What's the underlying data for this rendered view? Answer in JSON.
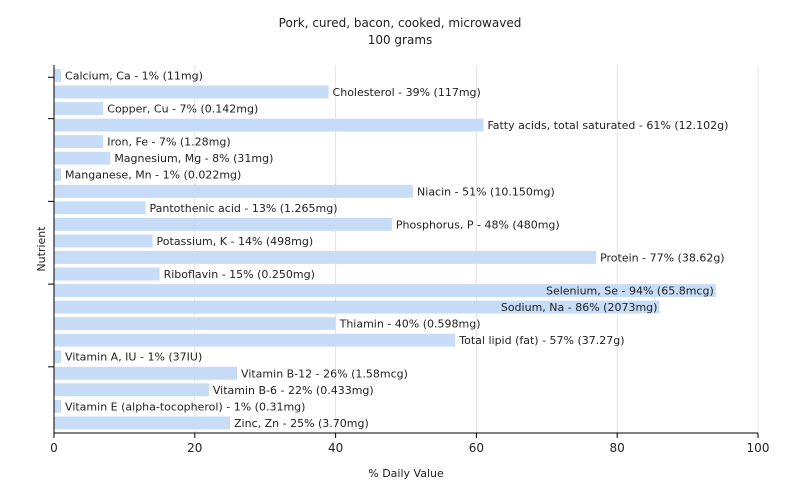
{
  "chart_data": {
    "type": "bar",
    "orientation": "horizontal",
    "title": "Pork, cured, bacon, cooked, microwaved",
    "subtitle": "100 grams",
    "xlabel": "% Daily Value",
    "ylabel": "Nutrient",
    "xlim": [
      0,
      100
    ],
    "xticks": [
      0,
      20,
      40,
      60,
      80,
      100
    ],
    "grid": true,
    "bar_color": "#c6dcf7",
    "categories": [
      "Calcium, Ca",
      "Cholesterol",
      "Copper, Cu",
      "Fatty acids, total saturated",
      "Iron, Fe",
      "Magnesium, Mg",
      "Manganese, Mn",
      "Niacin",
      "Pantothenic acid",
      "Phosphorus, P",
      "Potassium, K",
      "Protein",
      "Riboflavin",
      "Selenium, Se",
      "Sodium, Na",
      "Thiamin",
      "Total lipid (fat)",
      "Vitamin A, IU",
      "Vitamin B-12",
      "Vitamin B-6",
      "Vitamin E (alpha-tocopherol)",
      "Zinc, Zn"
    ],
    "values": [
      1,
      39,
      7,
      61,
      7,
      8,
      1,
      51,
      13,
      48,
      14,
      77,
      15,
      94,
      86,
      40,
      57,
      1,
      26,
      22,
      1,
      25
    ],
    "labels": [
      "Calcium, Ca - 1% (11mg)",
      "Cholesterol - 39% (117mg)",
      "Copper, Cu - 7% (0.142mg)",
      "Fatty acids, total saturated - 61% (12.102g)",
      "Iron, Fe - 7% (1.28mg)",
      "Magnesium, Mg - 8% (31mg)",
      "Manganese, Mn - 1% (0.022mg)",
      "Niacin - 51% (10.150mg)",
      "Pantothenic acid - 13% (1.265mg)",
      "Phosphorus, P - 48% (480mg)",
      "Potassium, K - 14% (498mg)",
      "Protein - 77% (38.62g)",
      "Riboflavin - 15% (0.250mg)",
      "Selenium, Se - 94% (65.8mcg)",
      "Sodium, Na - 86% (2073mg)",
      "Thiamin - 40% (0.598mg)",
      "Total lipid (fat) - 57% (37.27g)",
      "Vitamin A, IU - 1% (37IU)",
      "Vitamin B-12 - 26% (1.58mcg)",
      "Vitamin B-6 - 22% (0.433mg)",
      "Vitamin E (alpha-tocopherol) - 1% (0.31mg)",
      "Zinc, Zn - 25% (3.70mg)"
    ]
  }
}
